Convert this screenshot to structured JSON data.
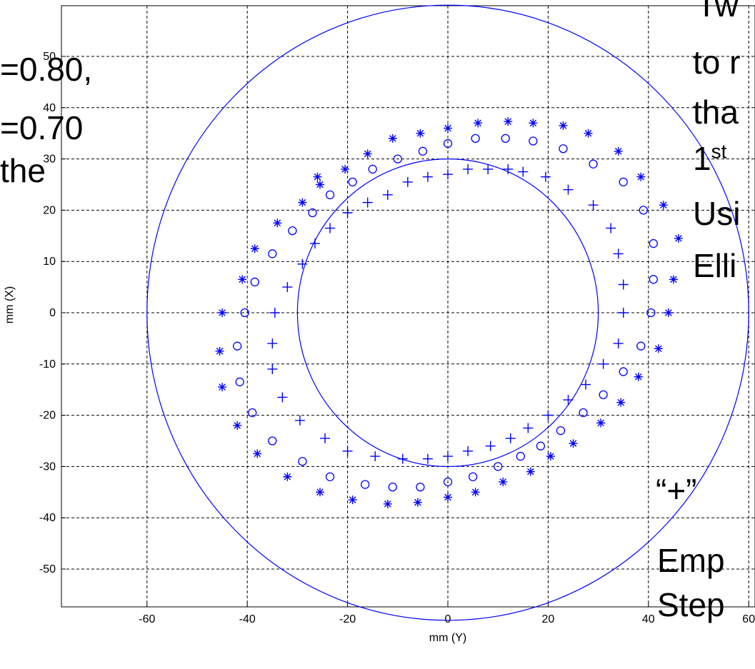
{
  "chart_data": {
    "type": "scatter",
    "xlabel": "mm (Y)",
    "ylabel": "mm (X)",
    "xlim": [
      -76,
      62
    ],
    "ylim": [
      -60,
      60
    ],
    "xticks": [
      -60,
      -40,
      -20,
      0,
      20,
      40,
      60
    ],
    "yticks": [
      -50,
      -40,
      -30,
      -20,
      -10,
      0,
      10,
      20,
      30,
      40,
      50
    ],
    "xtick_labels": [
      "-60",
      "-40",
      "-20",
      "0",
      "20",
      "40",
      "60"
    ],
    "ytick_labels": [
      "-50",
      "-40",
      "-30",
      "-20",
      "-10",
      "0",
      "10",
      "20",
      "30",
      "40",
      "50"
    ],
    "grid": true,
    "color": "#0000ff",
    "circles": [
      {
        "cx": 0,
        "cy": 0,
        "r": 60
      },
      {
        "cx": 0,
        "cy": 0,
        "r": 30
      }
    ],
    "series": [
      {
        "marker": "star",
        "points": [
          [
            -45,
            0
          ],
          [
            -45.5,
            -7.5
          ],
          [
            -45,
            -14.5
          ],
          [
            -42,
            -22
          ],
          [
            -38,
            -27.5
          ],
          [
            -32,
            -32
          ],
          [
            -25.5,
            -35
          ],
          [
            -19,
            -36.5
          ],
          [
            -12,
            -37.3
          ],
          [
            -6,
            -37
          ],
          [
            0,
            -36
          ],
          [
            5.5,
            -35
          ],
          [
            11,
            -33
          ],
          [
            16.5,
            -31
          ],
          [
            20.5,
            -28
          ],
          [
            25,
            -25.5
          ],
          [
            30.5,
            -21.5
          ],
          [
            34.5,
            -17.5
          ],
          [
            38,
            -12.5
          ],
          [
            42,
            -7
          ],
          [
            44,
            0
          ],
          [
            45,
            6.5
          ],
          [
            46,
            14.5
          ],
          [
            43,
            21
          ],
          [
            38.5,
            26.5
          ],
          [
            34,
            31.5
          ],
          [
            28,
            35
          ],
          [
            23,
            36.5
          ],
          [
            17,
            37
          ],
          [
            12,
            37.3
          ],
          [
            6,
            37
          ],
          [
            0,
            36
          ],
          [
            -5.5,
            35
          ],
          [
            -11,
            34
          ],
          [
            -16,
            31
          ],
          [
            -20.5,
            28
          ],
          [
            -25.5,
            25
          ],
          [
            -26,
            26.5
          ],
          [
            -29,
            21.5
          ],
          [
            -34,
            17.5
          ],
          [
            -38.5,
            12.5
          ],
          [
            -41,
            6.5
          ]
        ]
      },
      {
        "marker": "circle",
        "points": [
          [
            -40.5,
            0
          ],
          [
            -42,
            -6.5
          ],
          [
            -41.5,
            -13.5
          ],
          [
            -39,
            -19.5
          ],
          [
            -35,
            -25
          ],
          [
            -29,
            -29
          ],
          [
            -23.5,
            -32
          ],
          [
            -16.5,
            -33.5
          ],
          [
            -11,
            -34
          ],
          [
            -5.5,
            -34
          ],
          [
            0,
            -33
          ],
          [
            5,
            -32
          ],
          [
            10,
            -30
          ],
          [
            14.5,
            -28
          ],
          [
            18.5,
            -26
          ],
          [
            22.5,
            -23
          ],
          [
            27,
            -19.5
          ],
          [
            31,
            -16
          ],
          [
            35,
            -11.5
          ],
          [
            38.5,
            -6.5
          ],
          [
            40.5,
            0
          ],
          [
            41,
            6.5
          ],
          [
            41,
            13.5
          ],
          [
            39,
            20
          ],
          [
            35,
            25.5
          ],
          [
            29,
            29
          ],
          [
            23,
            32
          ],
          [
            17,
            33.5
          ],
          [
            11.5,
            34
          ],
          [
            5.5,
            34
          ],
          [
            0,
            33
          ],
          [
            -5,
            31.5
          ],
          [
            -10,
            30
          ],
          [
            -15,
            28
          ],
          [
            -19,
            25.5
          ],
          [
            -23.5,
            23
          ],
          [
            -27,
            19.5
          ],
          [
            -31,
            16
          ],
          [
            -35,
            11.5
          ],
          [
            -38.5,
            6
          ]
        ]
      },
      {
        "marker": "plus",
        "points": [
          [
            -34.5,
            0
          ],
          [
            -35,
            -6
          ],
          [
            -35,
            -11
          ],
          [
            -33,
            -16.5
          ],
          [
            -29.5,
            -21
          ],
          [
            -24.5,
            -24.5
          ],
          [
            -20,
            -27
          ],
          [
            -14.5,
            -28
          ],
          [
            -9,
            -28.5
          ],
          [
            -4,
            -28.5
          ],
          [
            0,
            -28
          ],
          [
            4,
            -27
          ],
          [
            8.5,
            -26
          ],
          [
            12.5,
            -24.5
          ],
          [
            16,
            -22.5
          ],
          [
            20,
            -20
          ],
          [
            24,
            -17
          ],
          [
            27.5,
            -14
          ],
          [
            31,
            -10
          ],
          [
            34,
            -6
          ],
          [
            35,
            0
          ],
          [
            35,
            5.5
          ],
          [
            34,
            11.5
          ],
          [
            32.5,
            16.5
          ],
          [
            29,
            21
          ],
          [
            24,
            24
          ],
          [
            19.5,
            26.5
          ],
          [
            15,
            27.5
          ],
          [
            12,
            28
          ],
          [
            8,
            28
          ],
          [
            4,
            28
          ],
          [
            0,
            27
          ],
          [
            -4,
            26.5
          ],
          [
            -8,
            25.5
          ],
          [
            -12,
            23
          ],
          [
            -16,
            21.5
          ],
          [
            -20,
            19.5
          ],
          [
            -23.5,
            16.5
          ],
          [
            -26.5,
            13.5
          ],
          [
            -29,
            9.5
          ],
          [
            -32,
            5
          ]
        ]
      }
    ]
  },
  "overlay_text": {
    "left_line1": "=0.80,",
    "left_line2": "=0.70",
    "left_line3": "the",
    "right_line1": "Tw",
    "right_line2": "to r",
    "right_line3": "tha",
    "right_line4_base": "1",
    "right_line4_sup": "st",
    "right_line5": "Usi",
    "right_line6": "Elli",
    "right_plus": "“+”",
    "right_emp": "Emp",
    "right_step": "Step"
  }
}
